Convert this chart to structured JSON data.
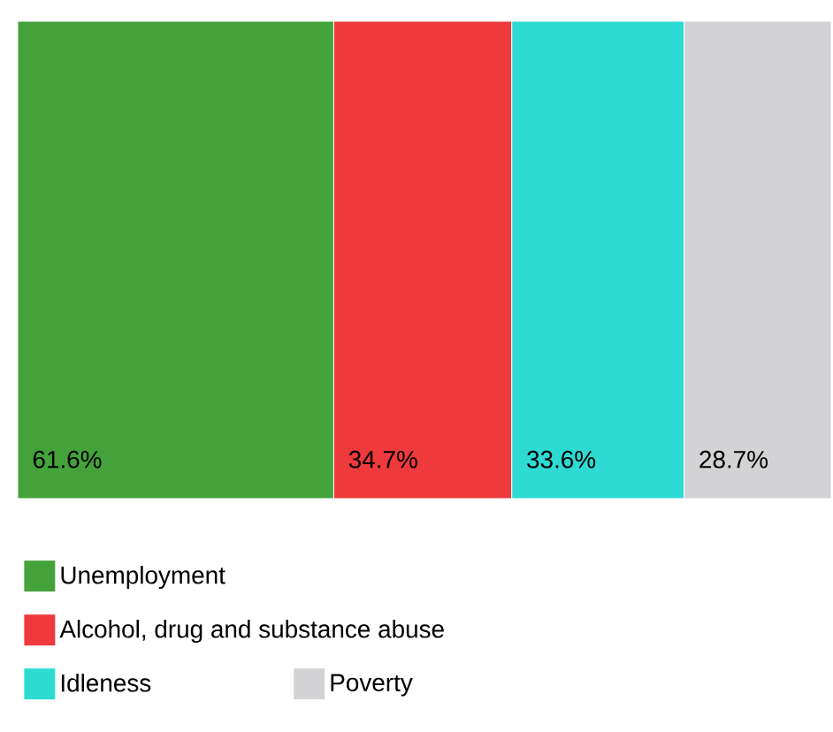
{
  "chart_data": {
    "type": "bar",
    "orientation": "horizontal",
    "stacked": true,
    "xlim": [
      0,
      158.6
    ],
    "legend": "bottom",
    "categories": [
      null
    ],
    "series": [
      {
        "name": "Unemployment",
        "color": "#43a33a",
        "values": [
          61.6
        ],
        "value_labels": [
          "61.6%"
        ]
      },
      {
        "name": "Alcohol, drug and substance abuse",
        "color": "#ee3a3c",
        "values": [
          34.7
        ],
        "value_labels": [
          "34.7%"
        ]
      },
      {
        "name": "Idleness",
        "color": "#2ddbd3",
        "values": [
          33.6
        ],
        "value_labels": [
          "33.6%"
        ]
      },
      {
        "name": "Poverty",
        "color": "#d3d3d5",
        "values": [
          28.7
        ],
        "value_labels": [
          "28.7%"
        ]
      }
    ]
  }
}
